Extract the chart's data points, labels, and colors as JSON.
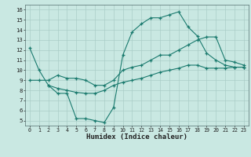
{
  "xlabel": "Humidex (Indice chaleur)",
  "bg_color": "#c9e8e2",
  "grid_color": "#aacdc7",
  "line_color": "#1a7a6e",
  "xlim": [
    -0.5,
    23.5
  ],
  "ylim": [
    4.5,
    16.5
  ],
  "xticks": [
    0,
    1,
    2,
    3,
    4,
    5,
    6,
    7,
    8,
    9,
    10,
    11,
    12,
    13,
    14,
    15,
    16,
    17,
    18,
    19,
    20,
    21,
    22,
    23
  ],
  "yticks": [
    5,
    6,
    7,
    8,
    9,
    10,
    11,
    12,
    13,
    14,
    15,
    16
  ],
  "line1_x": [
    0,
    1,
    2,
    3,
    4,
    5,
    6,
    7,
    8,
    9,
    10,
    11,
    12,
    13,
    14,
    15,
    16,
    17,
    18,
    19,
    20,
    21,
    22,
    23
  ],
  "line1_y": [
    12.2,
    10.0,
    8.5,
    7.7,
    7.7,
    5.2,
    5.2,
    5.0,
    4.8,
    6.3,
    11.5,
    13.8,
    14.6,
    15.2,
    15.2,
    15.5,
    15.8,
    14.3,
    13.4,
    11.7,
    11.0,
    10.5,
    10.3,
    10.3
  ],
  "line2_x": [
    0,
    1,
    2,
    3,
    4,
    5,
    6,
    7,
    8,
    9,
    10,
    11,
    12,
    13,
    14,
    15,
    16,
    17,
    18,
    19,
    20,
    21,
    22,
    23
  ],
  "line2_y": [
    9.0,
    9.0,
    9.0,
    9.5,
    9.2,
    9.2,
    9.0,
    8.5,
    8.5,
    9.0,
    10.0,
    10.3,
    10.5,
    11.0,
    11.5,
    11.5,
    12.0,
    12.5,
    13.0,
    13.3,
    13.3,
    11.0,
    10.8,
    10.5
  ],
  "line3_x": [
    2,
    3,
    4,
    5,
    6,
    7,
    8,
    9,
    10,
    11,
    12,
    13,
    14,
    15,
    16,
    17,
    18,
    19,
    20,
    21,
    22,
    23
  ],
  "line3_y": [
    8.5,
    8.2,
    8.0,
    7.8,
    7.7,
    7.7,
    8.0,
    8.5,
    8.8,
    9.0,
    9.2,
    9.5,
    9.8,
    10.0,
    10.2,
    10.5,
    10.5,
    10.2,
    10.2,
    10.2,
    10.3,
    10.3
  ]
}
